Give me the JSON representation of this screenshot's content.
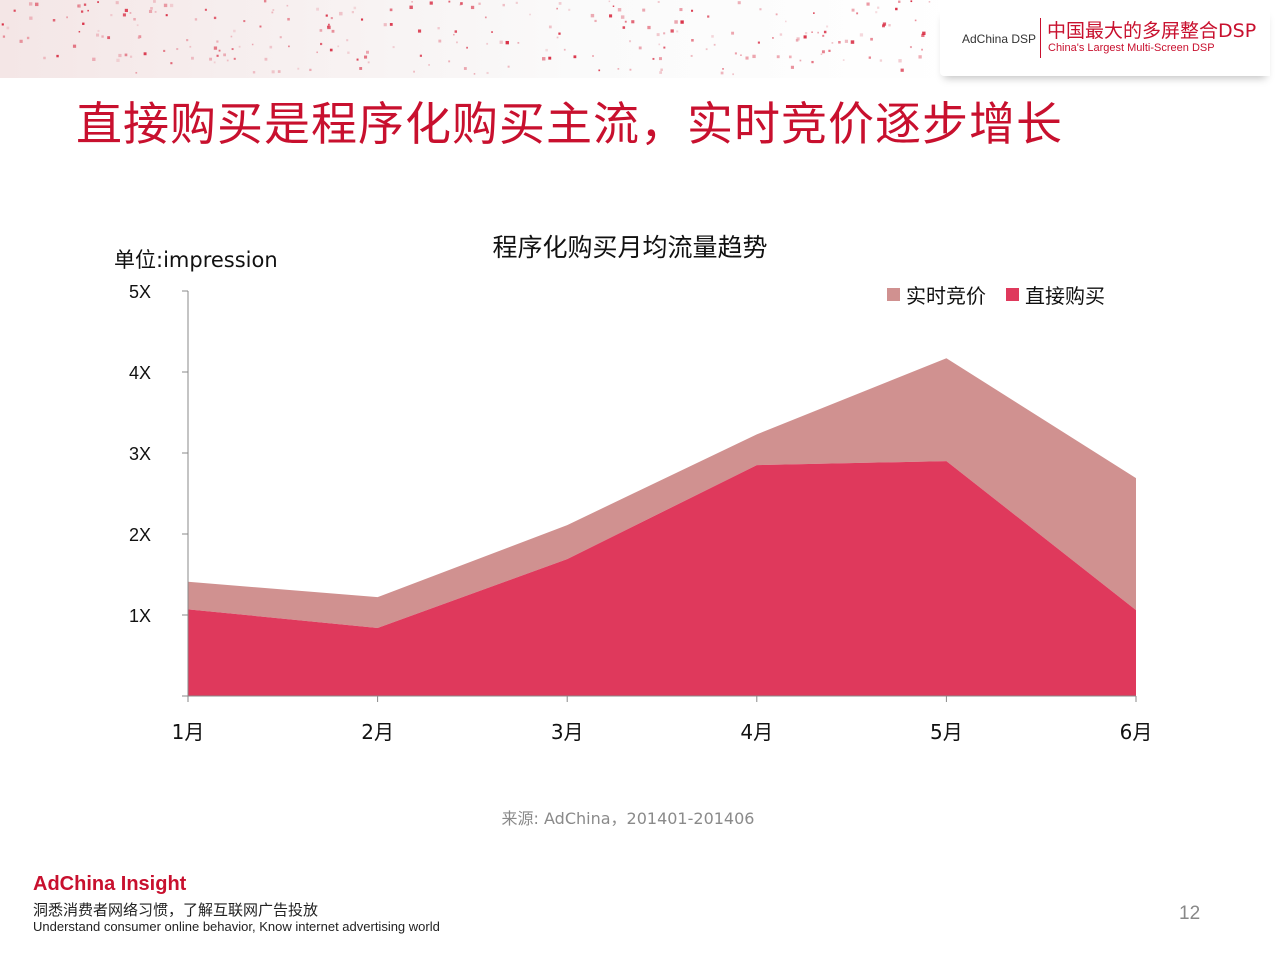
{
  "header": {
    "brand_left": "AdChina DSP",
    "brand_cn": "中国最大的多屏整合DSP",
    "brand_en": "China's Largest Multi-Screen DSP"
  },
  "slide_title": "直接购买是程序化购买主流，实时竞价逐步增长",
  "chart_data": {
    "type": "area",
    "stacked": true,
    "title": "程序化购买月均流量趋势",
    "unit_label": "单位:impression",
    "categories": [
      "1月",
      "2月",
      "3月",
      "4月",
      "5月",
      "6月"
    ],
    "y_ticks": [
      "5X",
      "4X",
      "3X",
      "2X",
      "1X"
    ],
    "ylim": [
      0,
      5
    ],
    "legend_position": "top-right",
    "series": [
      {
        "name": "直接购买",
        "color": "#df395c",
        "values": [
          1.07,
          0.84,
          1.69,
          2.85,
          2.9,
          1.06
        ]
      },
      {
        "name": "实时竞价",
        "color": "#d09190",
        "values": [
          0.34,
          0.38,
          0.42,
          0.38,
          1.27,
          1.63
        ]
      }
    ],
    "legend": [
      {
        "name": "实时竞价",
        "color": "#d09190"
      },
      {
        "name": "直接购买",
        "color": "#df395c"
      }
    ]
  },
  "source": "来源: AdChina，201401-201406",
  "footer": {
    "brand": "AdChina Insight",
    "tagline_cn": "洞悉消费者网络习惯，了解互联网广告投放",
    "tagline_en": "Understand consumer online behavior, Know internet advertising world"
  },
  "page_number": "12"
}
